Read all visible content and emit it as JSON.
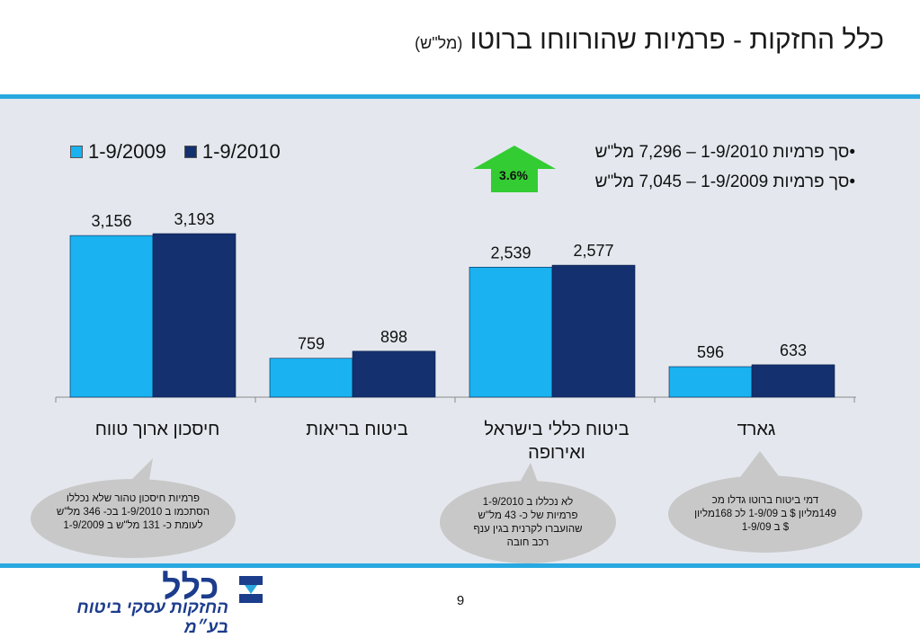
{
  "slide": {
    "title": "כלל החזקות - פרמיות שהורווחו ברוטו",
    "title_unit": "(מל\"ש)",
    "page_number": "9",
    "logo_name": "כלל",
    "logo_subtitle": "החזקות עסקי ביטוח בע״מ"
  },
  "summary": {
    "line1": "•סך פרמיות 1-9/2010 – 7,296 מל\"ש",
    "line2": "•סך פרמיות 1-9/2009 – 7,045 מל\"ש",
    "growth_label": "3.6%",
    "growth_color": "#33cc33"
  },
  "bubbles": [
    {
      "text": "פרמיות חיסכון טהור שלא נכללו הסתכמו ב 1-9/2010 בכ- 346 מל\"ש לעומת כ- 131 מל\"ש ב 1-9/2009"
    },
    {
      "text": "לא נכללו ב 1-9/2010 פרמיות של כ- 43 מל\"ש שהועברו לקרנית בגין ענף רכב חובה"
    },
    {
      "text": "דמי ביטוח ברוטו גדלו מכ 149מליון $ ב 1-9/09 לכ 168מליון $ ב 1-9/09"
    }
  ],
  "chart_data": {
    "type": "bar",
    "categories": [
      "חיסכון ארוך טווח",
      "ביטוח בריאות",
      "ביטוח כללי בישראל ואירופה",
      "גארד"
    ],
    "series": [
      {
        "name": "1-9/2009",
        "values": [
          3156,
          759,
          2539,
          596
        ],
        "labels": [
          "3,156",
          "759",
          "2,539",
          "596"
        ],
        "color": "#1ab2f0"
      },
      {
        "name": "1-9/2010",
        "values": [
          3193,
          898,
          2577,
          633
        ],
        "labels": [
          "3,193",
          "898",
          "2,577",
          "633"
        ],
        "color": "#14306e"
      }
    ],
    "ylim": [
      0,
      3600
    ],
    "legend": "top-left"
  }
}
